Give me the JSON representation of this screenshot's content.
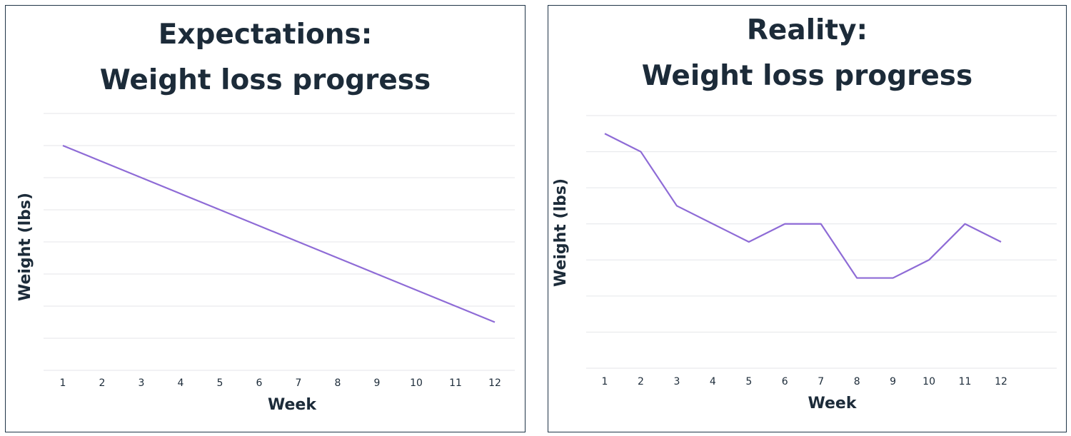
{
  "chart_data": [
    {
      "type": "line",
      "title": [
        "Expectations:",
        "Weight loss progress"
      ],
      "xlabel": "Week",
      "ylabel": "Weight (lbs)",
      "categories": [
        "1",
        "2",
        "3",
        "4",
        "5",
        "6",
        "7",
        "8",
        "9",
        "10",
        "11",
        "12"
      ],
      "values": [
        7.0,
        6.5,
        6.0,
        5.5,
        5.0,
        4.5,
        4.0,
        3.5,
        3.0,
        2.5,
        2.0,
        1.5
      ],
      "ylim": [
        0,
        8
      ],
      "y_tick_labels": false,
      "grid": true,
      "line_color": "#8e6bd6",
      "grid_color": "#e4e6ea",
      "text_color": "#1c2b39"
    },
    {
      "type": "line",
      "title": [
        "Reality:",
        "Weight loss progress"
      ],
      "xlabel": "Week",
      "ylabel": "Weight (lbs)",
      "categories": [
        "1",
        "2",
        "3",
        "4",
        "5",
        "6",
        "7",
        "8",
        "9",
        "10",
        "11",
        "12"
      ],
      "values": [
        6.5,
        6.0,
        4.5,
        4.0,
        3.5,
        4.0,
        4.0,
        2.5,
        2.5,
        3.0,
        4.0,
        3.5
      ],
      "ylim": [
        0,
        7
      ],
      "y_tick_labels": false,
      "grid": true,
      "line_color": "#8e6bd6",
      "grid_color": "#e4e6ea",
      "text_color": "#1c2b39"
    }
  ]
}
